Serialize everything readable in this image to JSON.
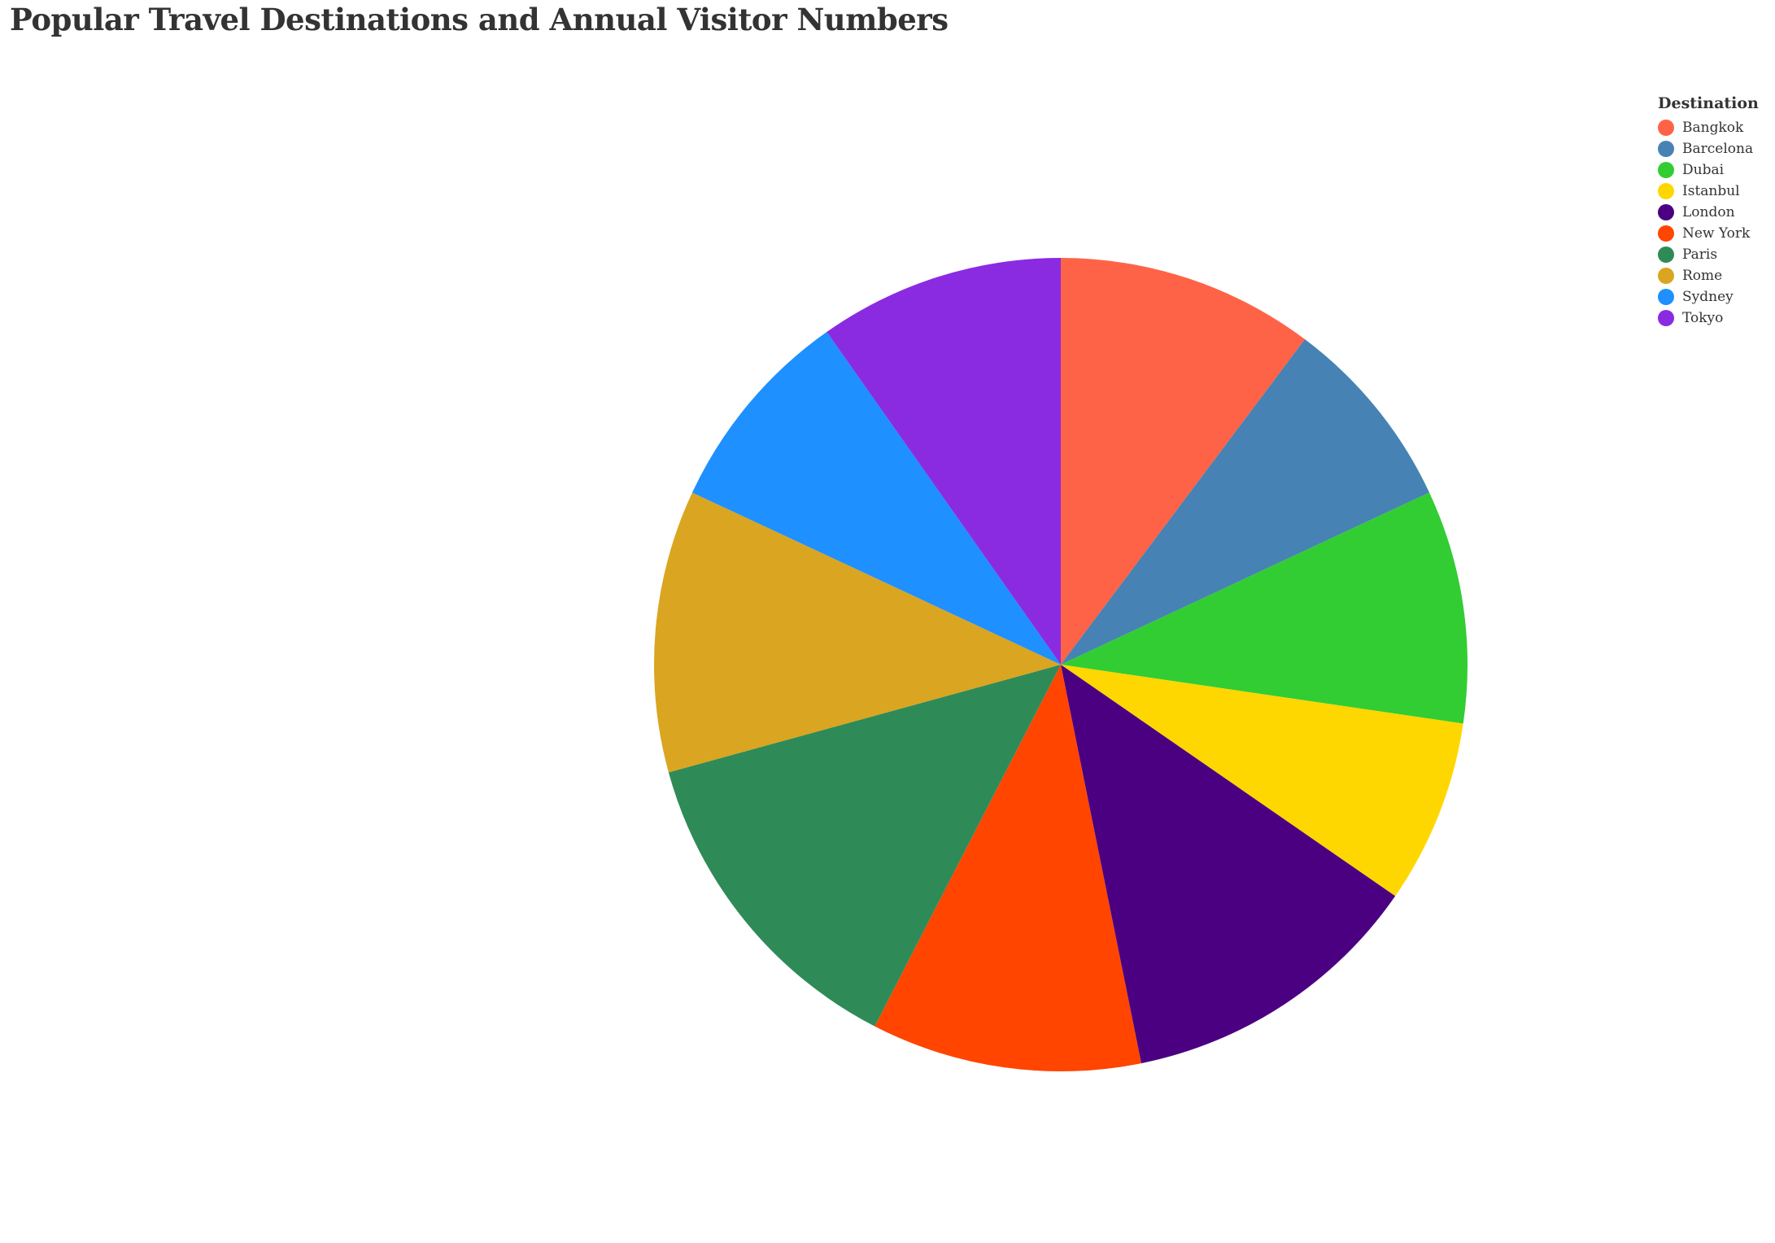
{
  "chart_data": {
    "type": "pie",
    "title": "Popular Travel Destinations and Annual Visitor Numbers",
    "legend_title": "Destination",
    "legend_position": "top-right",
    "categories": [
      "Bangkok",
      "Barcelona",
      "Dubai",
      "Istanbul",
      "London",
      "New York",
      "Paris",
      "Rome",
      "Sydney",
      "Tokyo"
    ],
    "colors": [
      "#FF6347",
      "#4682B4",
      "#32CD32",
      "#FFD700",
      "#4B0082",
      "#FF4500",
      "#2E8B57",
      "#DAA520",
      "#1E90FF",
      "#8A2BE2"
    ],
    "values": [
      10.5,
      8.0,
      9.5,
      7.5,
      12.5,
      11.0,
      13.5,
      11.5,
      8.5,
      10.0
    ]
  }
}
